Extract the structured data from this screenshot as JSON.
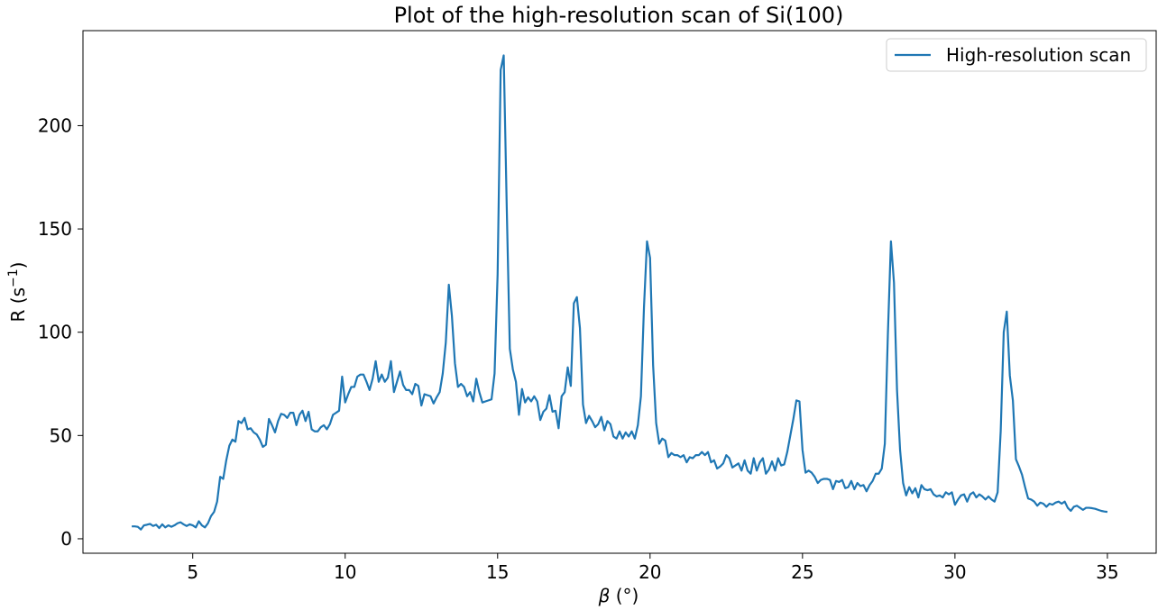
{
  "chart_data": {
    "type": "line",
    "title": "Plot of the high-resolution scan of Si(100)",
    "xlabel": "β (°)",
    "ylabel": "R (s−1)",
    "xlim": [
      1.4,
      36.6
    ],
    "ylim": [
      -7,
      246
    ],
    "xticks": [
      5,
      10,
      15,
      20,
      25,
      30,
      35
    ],
    "yticks": [
      0,
      50,
      100,
      150,
      200
    ],
    "grid": false,
    "legend_position": "top-right",
    "colors": {
      "series": "#1f77b4",
      "axes": "#000000"
    },
    "series": [
      {
        "name": "High-resolution scan",
        "x": [
          3.0,
          3.1,
          3.2,
          3.3,
          3.4,
          3.5,
          3.6,
          3.7,
          3.8,
          3.9,
          4.0,
          4.1,
          4.2,
          4.3,
          4.4,
          4.5,
          4.6,
          4.7,
          4.8,
          4.9,
          5.0,
          5.1,
          5.2,
          5.3,
          5.4,
          5.5,
          5.6,
          5.7,
          5.8,
          5.9,
          6.0,
          6.1,
          6.2,
          6.3,
          6.4,
          6.5,
          6.6,
          6.7,
          6.8,
          6.9,
          7.0,
          7.1,
          7.2,
          7.3,
          7.4,
          7.5,
          7.6,
          7.7,
          7.8,
          7.9,
          8.0,
          8.1,
          8.2,
          8.3,
          8.4,
          8.5,
          8.6,
          8.7,
          8.8,
          8.9,
          9.0,
          9.1,
          9.2,
          9.3,
          9.4,
          9.5,
          9.6,
          9.7,
          9.8,
          9.9,
          10.0,
          10.1,
          10.2,
          10.3,
          10.4,
          10.5,
          10.6,
          10.7,
          10.8,
          10.9,
          11.0,
          11.1,
          11.2,
          11.3,
          11.4,
          11.5,
          11.6,
          11.7,
          11.8,
          11.9,
          12.0,
          12.1,
          12.2,
          12.3,
          12.4,
          12.5,
          12.6,
          12.7,
          12.8,
          12.9,
          13.0,
          13.1,
          13.2,
          13.3,
          13.4,
          13.5,
          13.6,
          13.7,
          13.8,
          13.9,
          14.0,
          14.1,
          14.2,
          14.3,
          14.4,
          14.5,
          14.6,
          14.7,
          14.8,
          14.9,
          15.0,
          15.1,
          15.2,
          15.3,
          15.4,
          15.5,
          15.6,
          15.7,
          15.8,
          15.9,
          16.0,
          16.1,
          16.2,
          16.3,
          16.4,
          16.5,
          16.6,
          16.7,
          16.8,
          16.9,
          17.0,
          17.1,
          17.2,
          17.3,
          17.4,
          17.5,
          17.6,
          17.7,
          17.8,
          17.9,
          18.0,
          18.1,
          18.2,
          18.3,
          18.4,
          18.5,
          18.6,
          18.7,
          18.8,
          18.9,
          19.0,
          19.1,
          19.2,
          19.3,
          19.4,
          19.5,
          19.6,
          19.7,
          19.8,
          19.9,
          20.0,
          20.1,
          20.2,
          20.3,
          20.4,
          20.5,
          20.6,
          20.7,
          20.8,
          20.9,
          21.0,
          21.1,
          21.2,
          21.3,
          21.4,
          21.5,
          21.6,
          21.7,
          21.8,
          21.9,
          22.0,
          22.1,
          22.2,
          22.3,
          22.4,
          22.5,
          22.6,
          22.7,
          22.8,
          22.9,
          23.0,
          23.1,
          23.2,
          23.3,
          23.4,
          23.5,
          23.6,
          23.7,
          23.8,
          23.9,
          24.0,
          24.1,
          24.2,
          24.3,
          24.4,
          24.5,
          24.6,
          24.7,
          24.8,
          24.9,
          25.0,
          25.1,
          25.2,
          25.3,
          25.4,
          25.5,
          25.6,
          25.7,
          25.8,
          25.9,
          26.0,
          26.1,
          26.2,
          26.3,
          26.4,
          26.5,
          26.6,
          26.7,
          26.8,
          26.9,
          27.0,
          27.1,
          27.2,
          27.3,
          27.4,
          27.5,
          27.6,
          27.7,
          27.8,
          27.9,
          28.0,
          28.1,
          28.2,
          28.3,
          28.4,
          28.5,
          28.6,
          28.7,
          28.8,
          28.9,
          29.0,
          29.1,
          29.2,
          29.3,
          29.4,
          29.5,
          29.6,
          29.7,
          29.8,
          29.9,
          30.0,
          30.1,
          30.2,
          30.3,
          30.4,
          30.5,
          30.6,
          30.7,
          30.8,
          30.9,
          31.0,
          31.1,
          31.2,
          31.3,
          31.4,
          31.5,
          31.6,
          31.7,
          31.8,
          31.9,
          32.0,
          32.1,
          32.2,
          32.3,
          32.4,
          32.5,
          32.6,
          32.7,
          32.8,
          32.9,
          33.0,
          33.1,
          33.2,
          33.3,
          33.4,
          33.5,
          33.6,
          33.7,
          33.8,
          33.9,
          34.0,
          34.1,
          34.2,
          34.3,
          34.4,
          34.5,
          34.6,
          34.7,
          34.8,
          34.9,
          35.0
        ],
        "y": [
          6,
          6,
          5.8,
          4.5,
          6.5,
          6.8,
          7.2,
          6.2,
          6.8,
          5.2,
          7,
          5.5,
          6.5,
          5.8,
          6.5,
          7.5,
          8,
          7,
          6.2,
          7,
          6.5,
          5.5,
          8.5,
          6.5,
          5.5,
          7.5,
          11,
          13,
          18,
          30,
          29,
          38,
          45,
          48,
          47,
          57,
          56,
          58.5,
          53,
          53.5,
          51.5,
          50.5,
          48,
          44.5,
          45.5,
          58,
          55,
          51.5,
          57,
          60.5,
          60,
          58.5,
          61,
          61,
          55,
          60,
          62,
          57,
          61.5,
          53,
          52,
          52,
          54,
          55,
          53,
          55.5,
          60,
          61,
          62,
          78.5,
          66,
          70,
          73.5,
          73.5,
          78.5,
          79.5,
          79.5,
          76,
          72,
          77.5,
          86,
          76,
          79.5,
          76,
          78,
          86,
          71,
          76,
          81,
          74.5,
          72,
          72,
          70,
          75,
          74,
          64.5,
          70,
          69.5,
          69,
          65.5,
          68.5,
          71,
          80,
          95,
          123,
          108,
          85,
          73.5,
          75,
          73.5,
          69,
          71,
          66.5,
          77.5,
          71,
          66,
          66.5,
          67,
          67.5,
          80,
          128,
          227,
          234,
          160,
          92,
          82,
          76,
          60,
          72.5,
          66,
          68.5,
          66.5,
          69,
          66.5,
          57.5,
          61.5,
          63,
          69.5,
          61.5,
          62,
          53.5,
          69,
          71,
          83,
          74,
          114,
          117,
          102,
          65,
          56,
          59.5,
          57,
          54,
          55.5,
          59,
          52.5,
          57,
          55.5,
          49.5,
          48.5,
          52,
          48.5,
          51.5,
          49.5,
          52,
          48.5,
          55,
          69,
          112,
          144,
          136,
          84,
          56,
          46,
          48.5,
          47.5,
          39.5,
          41.5,
          40.5,
          40.5,
          39.5,
          40.5,
          37,
          39.5,
          39,
          40.5,
          40.5,
          42,
          40.5,
          42,
          37,
          38,
          34,
          35,
          36.5,
          40.5,
          39,
          34.5,
          35.5,
          36.5,
          33,
          38,
          33,
          31.5,
          39,
          33,
          37,
          39,
          31.5,
          33.5,
          37.5,
          33,
          39,
          35.5,
          36,
          42,
          50,
          58,
          67,
          66.5,
          43,
          32,
          33,
          32,
          30,
          27,
          28.5,
          29,
          29,
          28.5,
          24,
          28,
          27.5,
          28.5,
          24.5,
          25,
          28,
          24,
          27,
          25.5,
          26,
          23,
          26,
          28,
          31.5,
          31.5,
          34,
          46,
          99,
          144,
          124,
          72,
          43,
          27,
          21,
          25,
          22,
          24.5,
          20,
          26,
          24,
          23.5,
          24,
          21.5,
          20.5,
          21,
          20,
          22.5,
          21.5,
          22.5,
          16.5,
          19,
          21,
          21.5,
          18,
          21.5,
          22.5,
          20,
          21.5,
          20.5,
          19,
          20.5,
          19,
          18,
          22.5,
          52,
          100,
          110,
          79,
          67,
          38.5,
          35,
          31,
          25,
          19.5,
          19,
          18,
          16,
          17.5,
          17,
          15.5,
          17,
          16.5,
          17.5,
          18,
          17,
          18,
          15,
          13.5,
          15.5,
          16,
          15,
          14,
          15,
          15,
          14.8,
          14.5,
          14,
          13.5,
          13.2,
          13
        ]
      }
    ]
  }
}
